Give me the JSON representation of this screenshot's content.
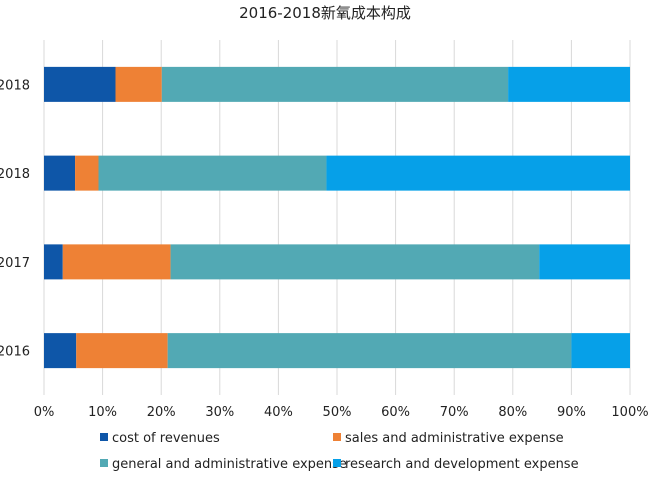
{
  "chart_data": {
    "type": "bar",
    "orientation": "horizontal",
    "stacked": "percent",
    "title": "2016-2018新氧成本构成",
    "categories": [
      "2018",
      "2018",
      "2017",
      "2016"
    ],
    "series": [
      {
        "name": "cost of revenues",
        "color": "#0E56A8",
        "values": [
          12.2,
          5.3,
          3.2,
          5.5
        ]
      },
      {
        "name": "sales and administrative expense",
        "color": "#EE8135",
        "values": [
          7.9,
          4.0,
          18.4,
          15.6
        ]
      },
      {
        "name": "general and administrative expense",
        "color": "#52A9B4",
        "values": [
          59.1,
          38.9,
          62.9,
          68.9
        ]
      },
      {
        "name": "research and development expense",
        "color": "#06A0E8",
        "values": [
          20.8,
          51.8,
          15.5,
          10.0
        ]
      }
    ],
    "x_ticks": [
      "0%",
      "10%",
      "20%",
      "30%",
      "40%",
      "50%",
      "60%",
      "70%",
      "80%",
      "90%",
      "100%"
    ],
    "xlim": [
      0,
      100
    ],
    "grid": true,
    "legend_position": "bottom"
  }
}
